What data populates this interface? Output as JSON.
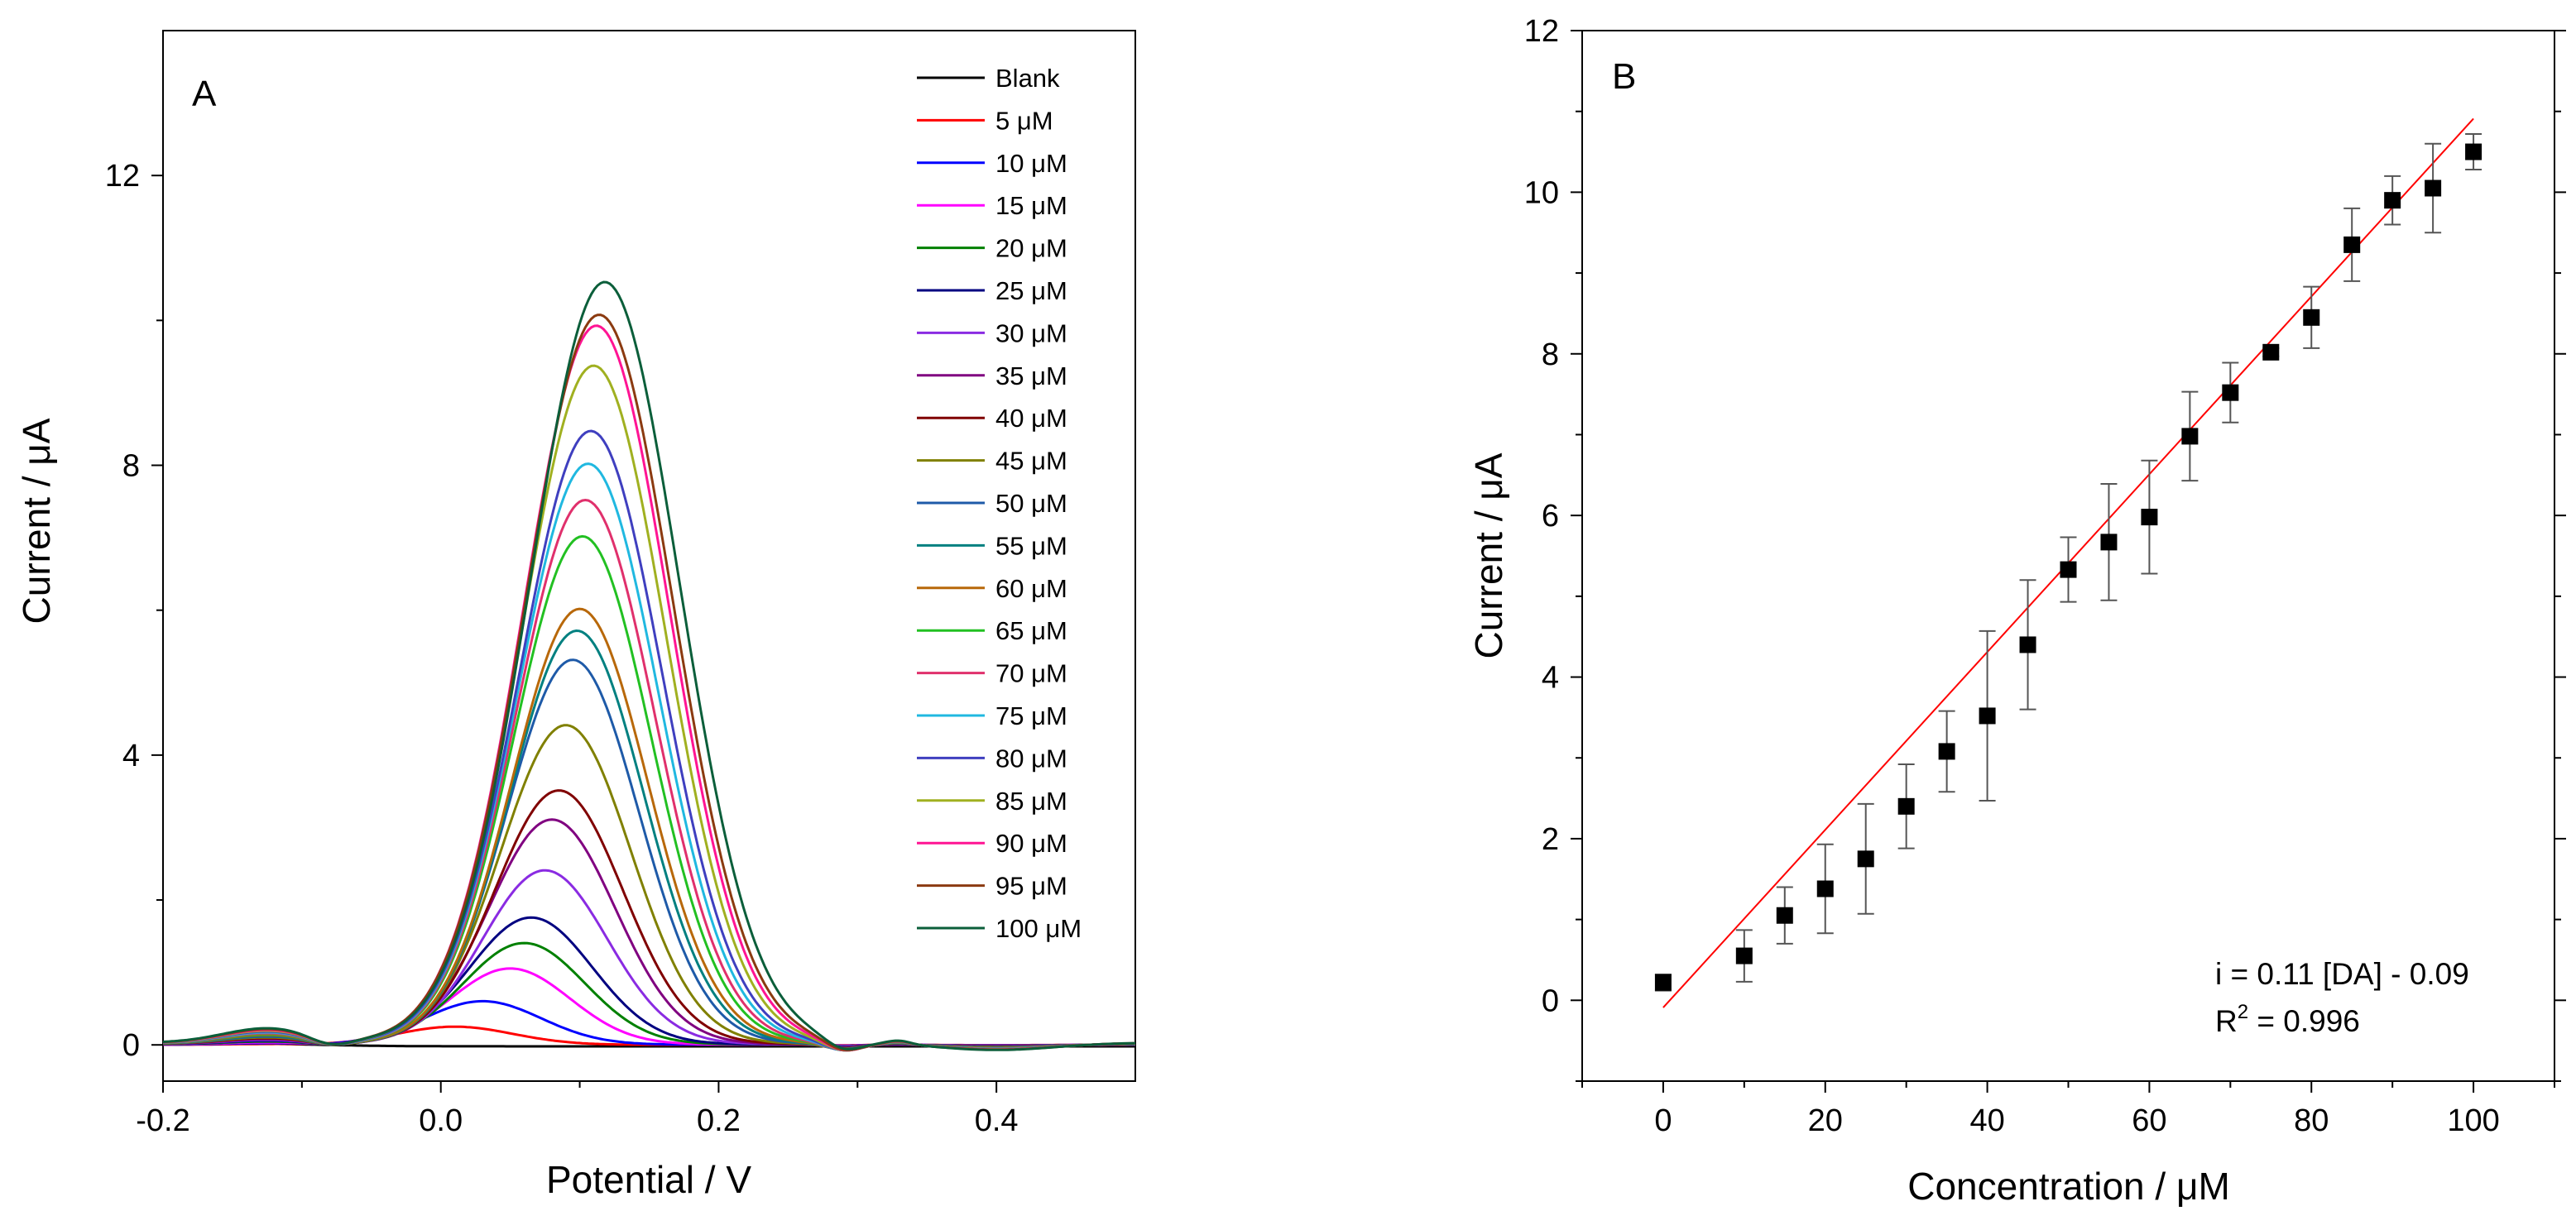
{
  "chart_data": [
    {
      "type": "line",
      "panel": "A",
      "xlabel": "Potential / V",
      "ylabel": "Current / μA",
      "xlim": [
        -0.2,
        0.5
      ],
      "ylim": [
        -0.5,
        14.0
      ],
      "xticks": [
        -0.2,
        0.0,
        0.2,
        0.4
      ],
      "xtick_labels": [
        "-0.2",
        "0.0",
        "0.2",
        "0.4"
      ],
      "yticks": [
        0,
        4,
        8,
        12
      ],
      "ytick_labels": [
        "0",
        "4",
        "8",
        "12"
      ],
      "legend_position": "top-right",
      "series": [
        {
          "name": "Blank",
          "color": "#000000",
          "peak_potential": 0.0,
          "peak_current": 0.0
        },
        {
          "name": "5 μM",
          "color": "#ff0000",
          "peak_potential": 0.01,
          "peak_current": 0.25
        },
        {
          "name": "10 μM",
          "color": "#0000ff",
          "peak_potential": 0.03,
          "peak_current": 0.6
        },
        {
          "name": "15 μM",
          "color": "#ff00ff",
          "peak_potential": 0.05,
          "peak_current": 1.05
        },
        {
          "name": "20 μM",
          "color": "#008000",
          "peak_potential": 0.06,
          "peak_current": 1.4
        },
        {
          "name": "25 μM",
          "color": "#000080",
          "peak_potential": 0.065,
          "peak_current": 1.75
        },
        {
          "name": "30 μM",
          "color": "#8a2be2",
          "peak_potential": 0.075,
          "peak_current": 2.4
        },
        {
          "name": "35 μM",
          "color": "#800080",
          "peak_potential": 0.08,
          "peak_current": 3.1
        },
        {
          "name": "40 μM",
          "color": "#800000",
          "peak_potential": 0.085,
          "peak_current": 3.5
        },
        {
          "name": "45 μM",
          "color": "#808000",
          "peak_potential": 0.09,
          "peak_current": 4.4
        },
        {
          "name": "50 μM",
          "color": "#1e5aa8",
          "peak_potential": 0.095,
          "peak_current": 5.3
        },
        {
          "name": "55 μM",
          "color": "#008080",
          "peak_potential": 0.098,
          "peak_current": 5.7
        },
        {
          "name": "60 μM",
          "color": "#b8680a",
          "peak_potential": 0.1,
          "peak_current": 6.0
        },
        {
          "name": "65 μM",
          "color": "#22c022",
          "peak_potential": 0.102,
          "peak_current": 7.0
        },
        {
          "name": "70 μM",
          "color": "#e0306c",
          "peak_potential": 0.104,
          "peak_current": 7.5
        },
        {
          "name": "75 μM",
          "color": "#20b8e0",
          "peak_potential": 0.106,
          "peak_current": 8.0
        },
        {
          "name": "80 μM",
          "color": "#3f3fbf",
          "peak_potential": 0.108,
          "peak_current": 8.45
        },
        {
          "name": "85 μM",
          "color": "#a0b020",
          "peak_potential": 0.11,
          "peak_current": 9.35
        },
        {
          "name": "90 μM",
          "color": "#ff1493",
          "peak_potential": 0.112,
          "peak_current": 9.9
        },
        {
          "name": "95 μM",
          "color": "#8b3a10",
          "peak_potential": 0.114,
          "peak_current": 10.05
        },
        {
          "name": "100 μM",
          "color": "#0b5e3a",
          "peak_potential": 0.118,
          "peak_current": 10.5
        }
      ]
    },
    {
      "type": "scatter",
      "panel": "B",
      "xlabel": "Concentration / μM",
      "ylabel": "Current / μA",
      "xlim": [
        -10,
        110
      ],
      "ylim": [
        -1,
        12
      ],
      "xticks": [
        0,
        20,
        40,
        60,
        80,
        100
      ],
      "xtick_labels": [
        "0",
        "20",
        "40",
        "60",
        "80",
        "100"
      ],
      "yticks": [
        0,
        2,
        4,
        6,
        8,
        10,
        12
      ],
      "ytick_labels": [
        "0",
        "2",
        "4",
        "6",
        "8",
        "10",
        "12"
      ],
      "x": [
        0,
        10,
        15,
        20,
        25,
        30,
        35,
        40,
        45,
        50,
        55,
        60,
        65,
        70,
        75,
        80,
        85,
        90,
        95,
        100
      ],
      "y": [
        0.22,
        0.55,
        1.05,
        1.38,
        1.75,
        2.4,
        3.08,
        3.52,
        4.4,
        5.33,
        5.67,
        5.98,
        6.98,
        7.52,
        8.02,
        8.45,
        9.35,
        9.9,
        10.05,
        10.5
      ],
      "error": [
        0.1,
        0.32,
        0.35,
        0.55,
        0.68,
        0.52,
        0.5,
        1.05,
        0.8,
        0.4,
        0.72,
        0.7,
        0.55,
        0.37,
        0.05,
        0.38,
        0.45,
        0.3,
        0.55,
        0.22
      ],
      "marker_color": "#000000",
      "fit": {
        "slope": 0.11,
        "intercept": -0.09,
        "color": "#ff0000"
      },
      "annotation": {
        "equation": "i = 0.11 [DA] - 0.09",
        "r2_prefix": "R",
        "r2_sup": "2",
        "r2_value": " = 0.996"
      }
    }
  ]
}
